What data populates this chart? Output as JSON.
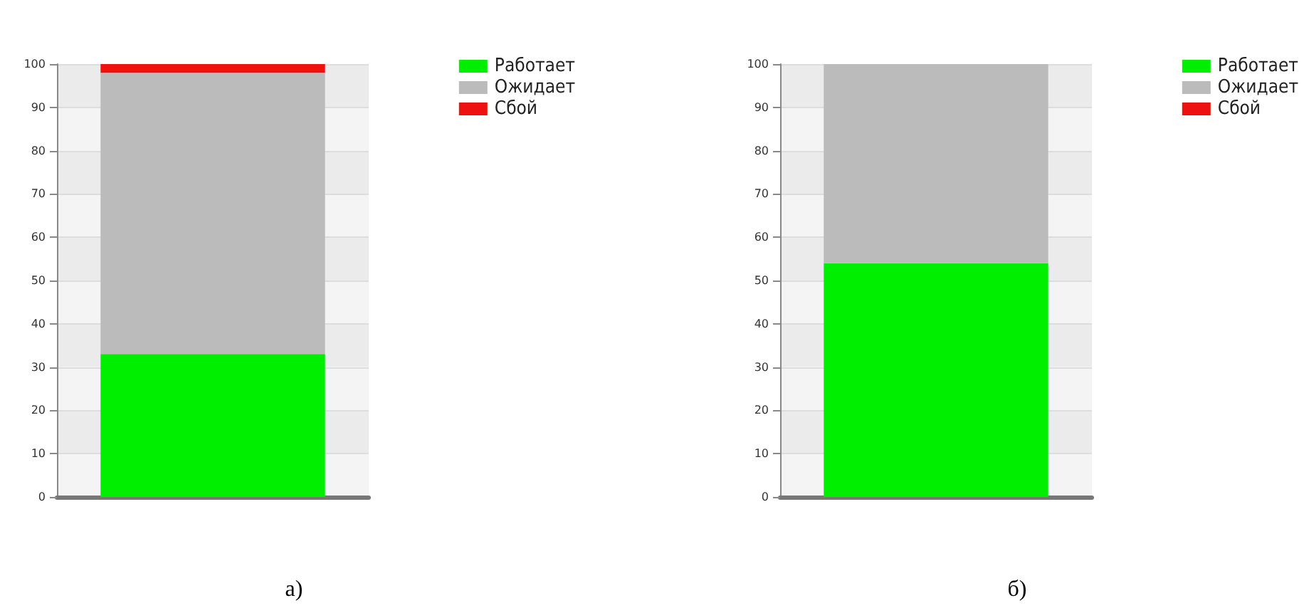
{
  "chart_data": [
    {
      "type": "bar",
      "title": "а)",
      "categories": [
        null
      ],
      "stacked": true,
      "series": [
        {
          "name": "Работает",
          "color": "#00ee00",
          "values": [
            33
          ]
        },
        {
          "name": "Ожидает",
          "color": "#bbbbbb",
          "values": [
            65
          ]
        },
        {
          "name": "Сбой",
          "color": "#ee1111",
          "values": [
            2
          ]
        }
      ],
      "ylim": [
        0,
        100
      ],
      "yticks": [
        0,
        10,
        20,
        30,
        40,
        50,
        60,
        70,
        80,
        90,
        100
      ],
      "grid": "y",
      "legend": "top right"
    },
    {
      "type": "bar",
      "title": "б)",
      "categories": [
        null
      ],
      "stacked": true,
      "series": [
        {
          "name": "Работает",
          "color": "#00ee00",
          "values": [
            54
          ]
        },
        {
          "name": "Ожидает",
          "color": "#bbbbbb",
          "values": [
            46
          ]
        },
        {
          "name": "Сбой",
          "color": "#ee1111",
          "values": [
            0
          ]
        }
      ],
      "ylim": [
        0,
        100
      ],
      "yticks": [
        0,
        10,
        20,
        30,
        40,
        50,
        60,
        70,
        80,
        90,
        100
      ],
      "grid": "y",
      "legend": "top right"
    }
  ]
}
